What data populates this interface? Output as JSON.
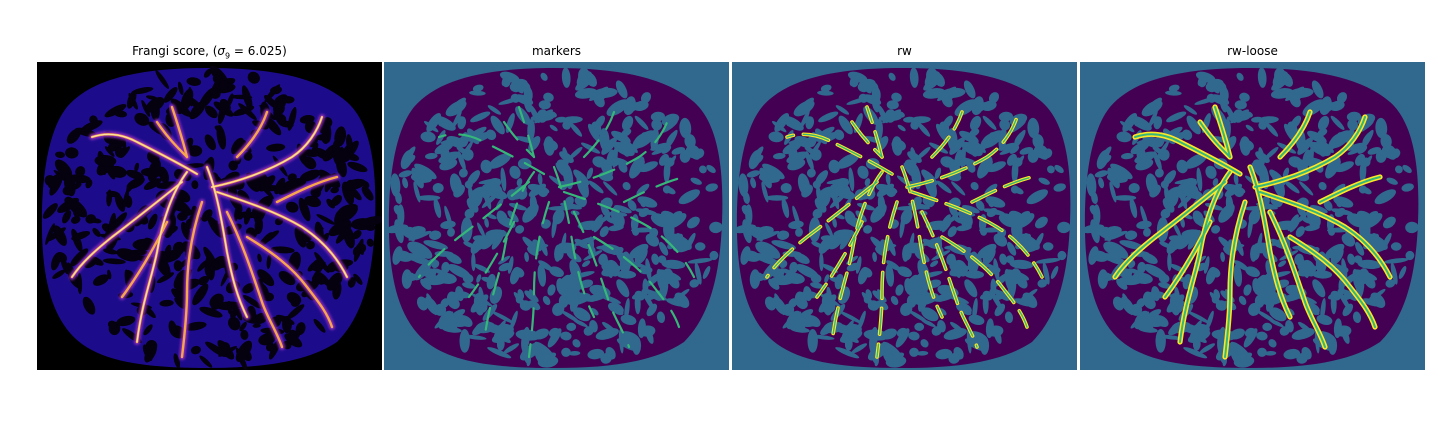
{
  "panels": [
    {
      "title_text": "Frangi score, (",
      "title_sigma": "σ",
      "title_sub": "9",
      "title_rest": " = 6.025)",
      "style": "frangi"
    },
    {
      "title": "markers",
      "style": "markers"
    },
    {
      "title": "rw",
      "style": "rw"
    },
    {
      "title": "rw-loose",
      "style": "rwloose"
    }
  ],
  "colors": {
    "frangi_background": "#000000",
    "frangi_low": "#1c0c8c",
    "frangi_mid": "#8a2ab5",
    "frangi_high": "#f7a64b",
    "frangi_peak": "#fde6a6",
    "viridis_dark": "#440154",
    "viridis_blue": "#31688e",
    "viridis_green": "#35b779",
    "viridis_yellow": "#fde725"
  }
}
